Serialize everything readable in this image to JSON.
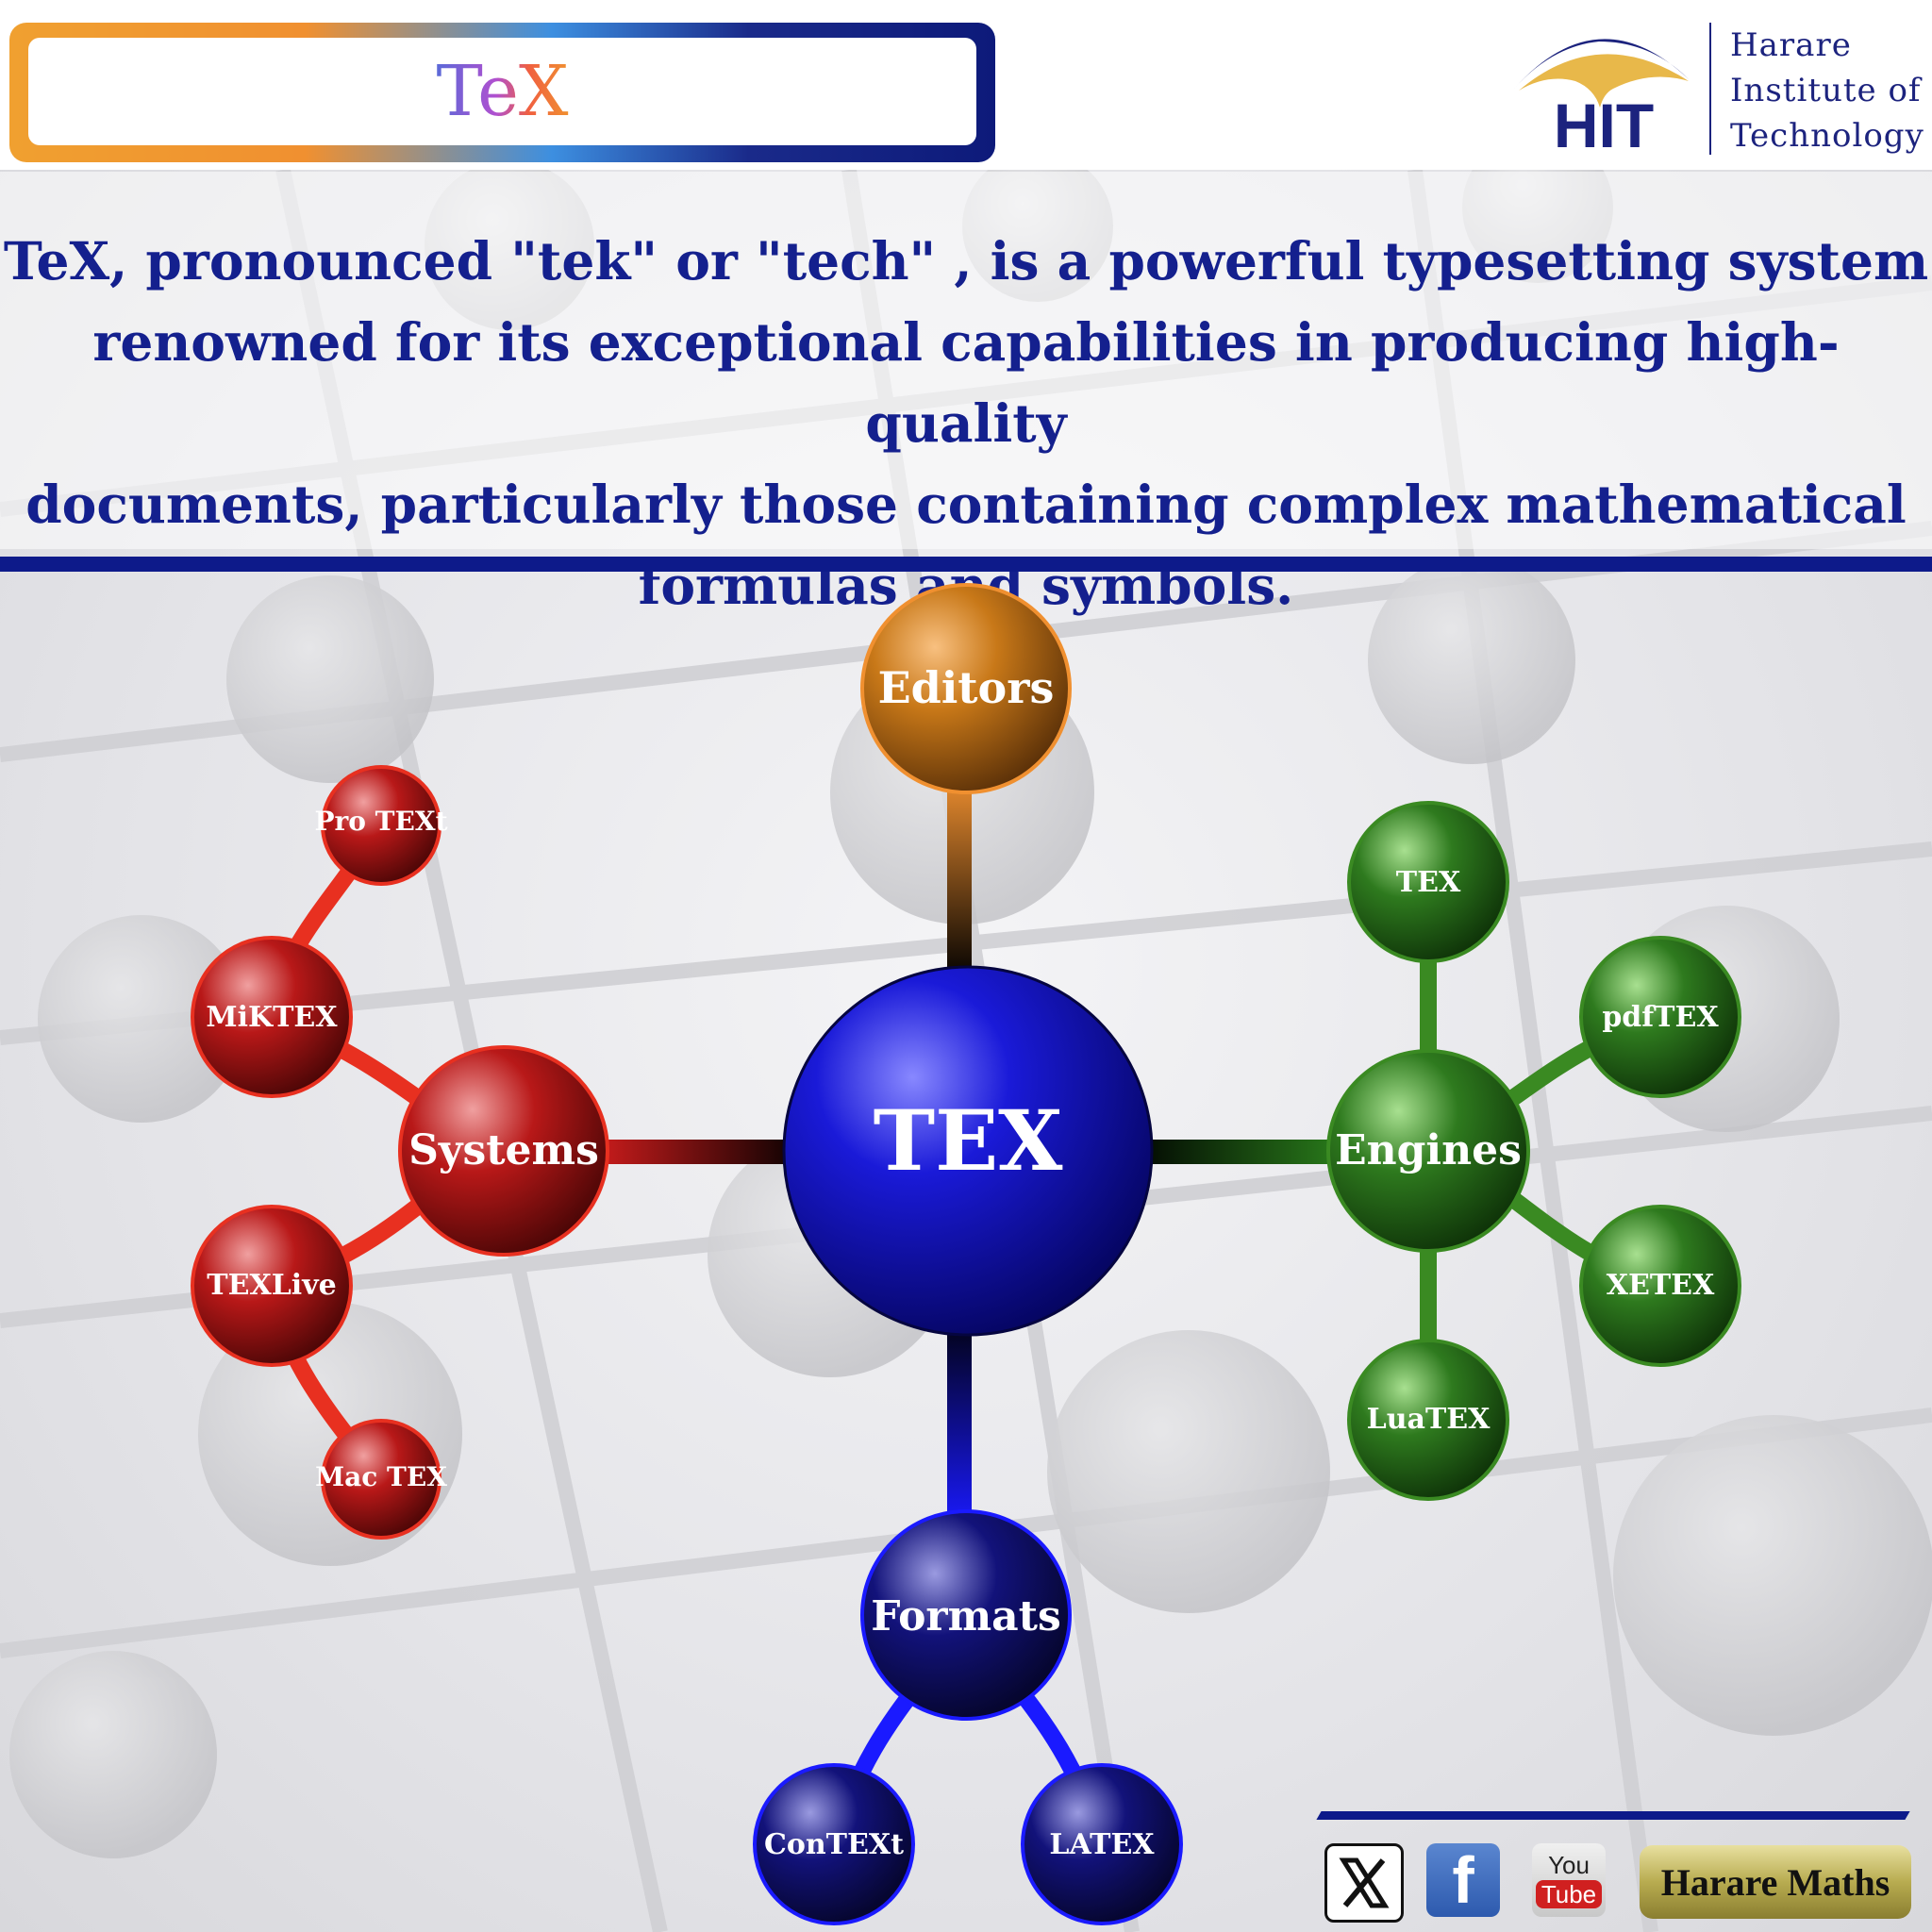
{
  "header": {
    "title": "TeX",
    "logo": {
      "acronym": "HIT",
      "line1": "Harare",
      "line2": "Institute of",
      "line3": "Technology"
    }
  },
  "description": {
    "lines": [
      "TeX, pronounced \"tek\" or \"tech\" , is a powerful typesetting system",
      "renowned for its exceptional capabilities in producing high-quality",
      "documents, particularly those containing complex mathematical",
      "formulas and symbols."
    ]
  },
  "mindmap": {
    "center": "TEX",
    "branches": [
      {
        "label": "Editors",
        "color": "#c87818",
        "children": []
      },
      {
        "label": "Systems",
        "color": "#b81818",
        "children": [
          "Pro TEXt",
          "MiKTEX",
          "TEXLive",
          "Mac TEX"
        ]
      },
      {
        "label": "Engines",
        "color": "#2e7a1e",
        "children": [
          "TEX",
          "pdfTEX",
          "XETEX",
          "LuaTEX"
        ]
      },
      {
        "label": "Formats",
        "color": "#12127a",
        "children": [
          "ConTEXt",
          "LATEX"
        ]
      }
    ],
    "center_color": "#1010c0"
  },
  "footer": {
    "social": [
      {
        "icon": "x-icon",
        "label": "X"
      },
      {
        "icon": "facebook-icon",
        "label": "f"
      },
      {
        "icon": "youtube-icon",
        "label_top": "You",
        "label_bottom": "Tube"
      }
    ],
    "badge": "Harare Maths"
  }
}
